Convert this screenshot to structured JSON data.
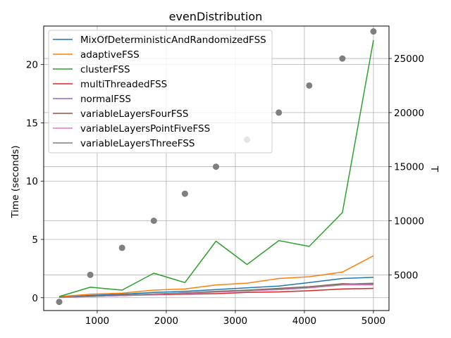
{
  "chart_data": {
    "type": "line",
    "title": "evenDistribution",
    "ylabel": "Time (seconds)",
    "y2label": "T",
    "xlabel": "",
    "xlim": [
      225,
      5225
    ],
    "ylim": [
      -1.1,
      23.3
    ],
    "y2lim": [
      1700,
      28000
    ],
    "x_ticks": [
      1000,
      2000,
      3000,
      4000,
      5000
    ],
    "x_tick_labels": [
      "1000",
      "2000",
      "3000",
      "4000",
      "5000"
    ],
    "y_ticks": [
      0,
      5,
      10,
      15,
      20
    ],
    "y_tick_labels": [
      "0",
      "5",
      "10",
      "15",
      "20"
    ],
    "y2_ticks": [
      5000,
      10000,
      15000,
      20000,
      25000
    ],
    "y2_tick_labels": [
      "5000",
      "10000",
      "15000",
      "20000",
      "25000"
    ],
    "grid": true,
    "legend_position": "top-left",
    "x": [
      450,
      900,
      1360,
      1820,
      2270,
      2720,
      3170,
      3630,
      4070,
      4550,
      5000
    ],
    "series": [
      {
        "name": "MixOfDeterministicAndRandomizedFSS",
        "color": "#1f77b4",
        "values": [
          0.05,
          0.2,
          0.3,
          0.45,
          0.55,
          0.7,
          0.85,
          1.0,
          1.3,
          1.65,
          1.75
        ]
      },
      {
        "name": "adaptiveFSS",
        "color": "#ff7f0e",
        "values": [
          0.1,
          0.3,
          0.4,
          0.65,
          0.75,
          1.1,
          1.25,
          1.65,
          1.8,
          2.2,
          3.6
        ]
      },
      {
        "name": "clusterFSS",
        "color": "#2ca02c",
        "values": [
          0.1,
          0.9,
          0.65,
          2.1,
          1.3,
          4.85,
          2.85,
          4.9,
          4.4,
          7.3,
          22.1
        ]
      },
      {
        "name": "multiThreadedFSS",
        "color": "#d62728",
        "values": [
          0.05,
          0.12,
          0.18,
          0.25,
          0.3,
          0.35,
          0.45,
          0.5,
          0.6,
          0.75,
          0.8
        ]
      },
      {
        "name": "normalFSS",
        "color": "#9467bd",
        "values": [
          0.05,
          0.1,
          0.2,
          0.3,
          0.4,
          0.5,
          0.6,
          0.7,
          0.85,
          1.15,
          1.2
        ]
      },
      {
        "name": "variableLayersFourFSS",
        "color": "#8c564b",
        "values": [
          0.05,
          0.12,
          0.22,
          0.32,
          0.42,
          0.55,
          0.65,
          0.8,
          0.95,
          1.2,
          1.15
        ]
      },
      {
        "name": "variableLayersPointFiveFSS",
        "color": "#e377c2",
        "values": [
          0.05,
          0.1,
          0.2,
          0.28,
          0.38,
          0.48,
          0.58,
          0.7,
          0.85,
          1.1,
          1.1
        ]
      },
      {
        "name": "variableLayersThreeFSS",
        "color": "#7f7f7f",
        "values": [
          0.05,
          0.12,
          0.22,
          0.3,
          0.42,
          0.52,
          0.62,
          0.75,
          0.9,
          1.15,
          1.25
        ]
      }
    ],
    "secondary_series": {
      "type": "scatter",
      "color": "#7f7f7f",
      "x": [
        450,
        900,
        1360,
        1820,
        2270,
        2720,
        3170,
        3630,
        4070,
        4550,
        5000
      ],
      "values": [
        2500,
        5000,
        7500,
        10000,
        12500,
        15000,
        17500,
        20000,
        22500,
        25000,
        27500
      ]
    }
  }
}
